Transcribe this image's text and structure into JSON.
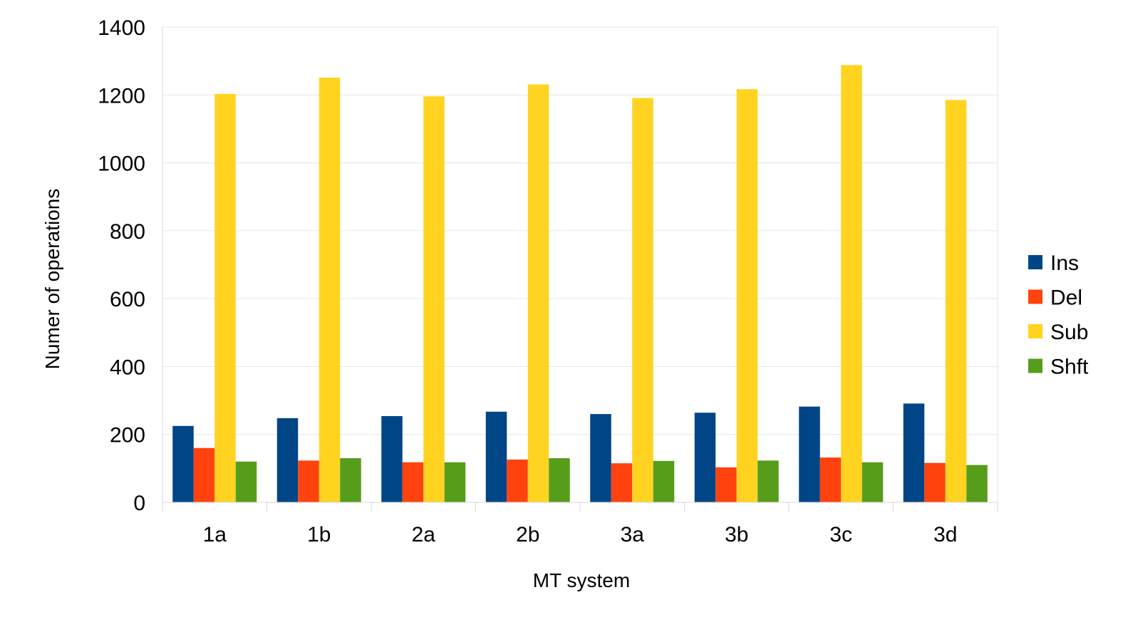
{
  "chart_data": {
    "type": "bar",
    "title": "",
    "xlabel": "MT system",
    "ylabel": "Numer of operations",
    "ylim": [
      0,
      1400
    ],
    "yticks": [
      0,
      200,
      400,
      600,
      800,
      1000,
      1200,
      1400
    ],
    "grid": true,
    "legend_position": "right",
    "categories": [
      "1a",
      "1b",
      "2a",
      "2b",
      "3a",
      "3b",
      "3c",
      "3d"
    ],
    "series": [
      {
        "name": "Ins",
        "color": "#004586",
        "values": [
          225,
          248,
          254,
          267,
          260,
          264,
          282,
          291
        ]
      },
      {
        "name": "Del",
        "color": "#ff420e",
        "values": [
          160,
          123,
          118,
          126,
          115,
          103,
          132,
          116
        ]
      },
      {
        "name": "Sub",
        "color": "#ffd320",
        "values": [
          1203,
          1251,
          1196,
          1231,
          1191,
          1217,
          1288,
          1185
        ]
      },
      {
        "name": "Shft",
        "color": "#579d1c",
        "values": [
          120,
          130,
          118,
          130,
          122,
          123,
          118,
          110
        ]
      }
    ]
  }
}
